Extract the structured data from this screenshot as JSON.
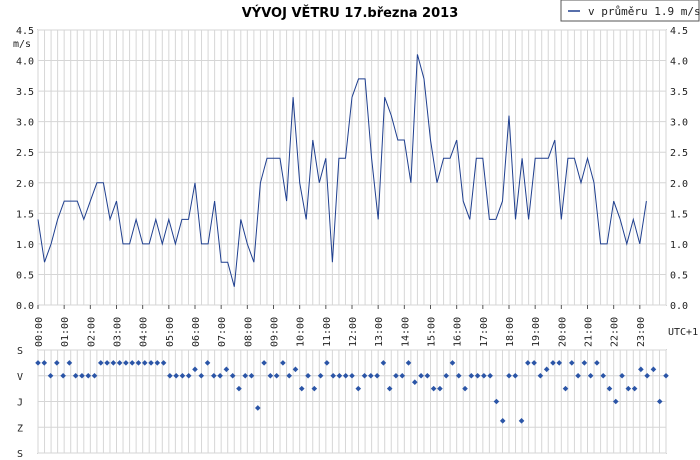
{
  "chart_data": [
    {
      "type": "line",
      "title": "VÝVOJ VĚTRU  17.března 2013",
      "ylabel": "m/s",
      "xlabel": "UTC+1",
      "ylim": [
        0,
        4.5
      ],
      "yticks": [
        "0.0",
        "0.5",
        "1.0",
        "1.5",
        "2.0",
        "2.5",
        "3.0",
        "3.5",
        "4.0",
        "4.5"
      ],
      "xticks": [
        "00:00",
        "01:00",
        "02:00",
        "03:00",
        "04:00",
        "05:00",
        "06:00",
        "07:00",
        "08:00",
        "09:00",
        "10:00",
        "11:00",
        "12:00",
        "13:00",
        "14:00",
        "15:00",
        "16:00",
        "17:00",
        "18:00",
        "19:00",
        "20:00",
        "21:00",
        "22:00",
        "23:00"
      ],
      "grid": true,
      "legend_position": "top-right",
      "interval_minutes": 15,
      "series": [
        {
          "name": "v průměru 1.9 m/s",
          "color": "#1f3f8f",
          "values": [
            1.4,
            0.7,
            1.0,
            1.4,
            1.7,
            1.7,
            1.7,
            1.4,
            1.7,
            2.0,
            2.0,
            1.4,
            1.7,
            1.0,
            1.0,
            1.4,
            1.0,
            1.0,
            1.4,
            1.0,
            1.4,
            1.0,
            1.4,
            1.4,
            2.0,
            1.0,
            1.0,
            1.7,
            0.7,
            0.7,
            0.3,
            1.4,
            1.0,
            0.7,
            2.0,
            2.4,
            2.4,
            2.4,
            1.7,
            3.4,
            2.0,
            1.4,
            2.7,
            2.0,
            2.4,
            0.7,
            2.4,
            2.4,
            3.4,
            3.7,
            3.7,
            2.4,
            1.4,
            3.4,
            3.1,
            2.7,
            2.7,
            2.0,
            4.1,
            3.7,
            2.7,
            2.0,
            2.4,
            2.4,
            2.7,
            1.7,
            1.4,
            2.4,
            2.4,
            1.4,
            1.4,
            1.7,
            3.1,
            1.4,
            2.4,
            1.4,
            2.4,
            2.4,
            2.4,
            2.7,
            1.4,
            2.4,
            2.4,
            2.0,
            2.4,
            2.0,
            1.0,
            1.0,
            1.7,
            1.4,
            1.0,
            1.4,
            1.0,
            1.7
          ]
        }
      ]
    },
    {
      "type": "scatter",
      "ylabel_ticks": [
        "S",
        "V",
        "J",
        "Z",
        "S"
      ],
      "description_levels": "0=S,1=V,2=J,3=Z,4=S",
      "values": [
        0.5,
        0.5,
        1.0,
        0.5,
        1.0,
        0.5,
        1.0,
        1.0,
        1.0,
        1.0,
        0.5,
        0.5,
        0.5,
        0.5,
        0.5,
        0.5,
        0.5,
        0.5,
        0.5,
        0.5,
        0.5,
        1.0,
        1.0,
        1.0,
        1.0,
        0.75,
        1.0,
        0.5,
        1.0,
        1.0,
        0.75,
        1.0,
        1.5,
        1.0,
        1.0,
        2.25,
        0.5,
        1.0,
        1.0,
        0.5,
        1.0,
        0.75,
        1.5,
        1.0,
        1.5,
        1.0,
        0.5,
        1.0,
        1.0,
        1.0,
        1.0,
        1.5,
        1.0,
        1.0,
        1.0,
        0.5,
        1.5,
        1.0,
        1.0,
        0.5,
        1.25,
        1.0,
        1.0,
        1.5,
        1.5,
        1.0,
        0.5,
        1.0,
        1.5,
        1.0,
        1.0,
        1.0,
        1.0,
        2.0,
        2.75,
        1.0,
        1.0,
        2.75,
        0.5,
        0.5,
        1.0,
        0.75,
        0.5,
        0.5,
        1.5,
        0.5,
        1.0,
        0.5,
        1.0,
        0.5,
        1.0,
        1.5,
        2.0,
        1.0,
        1.5,
        1.5,
        0.75,
        1.0,
        0.75,
        2.0,
        1.0
      ]
    }
  ]
}
